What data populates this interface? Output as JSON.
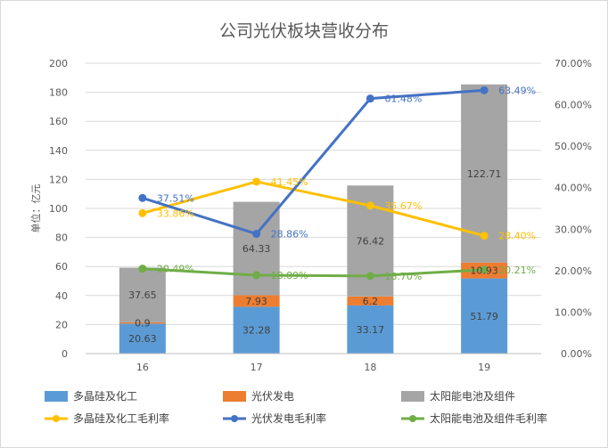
{
  "chart_data": {
    "type": "bar",
    "title": "公司光伏板块营收分布",
    "ylabel": "单位：亿元",
    "xlabel": "",
    "categories": [
      "16",
      "17",
      "18",
      "19"
    ],
    "ylim": [
      0,
      200
    ],
    "yticks": [
      "0",
      "20",
      "40",
      "60",
      "80",
      "100",
      "120",
      "140",
      "160",
      "180",
      "200"
    ],
    "y2lim": [
      0,
      0.7
    ],
    "y2ticks": [
      "0.00%",
      "10.00%",
      "20.00%",
      "30.00%",
      "40.00%",
      "50.00%",
      "60.00%",
      "70.00%"
    ],
    "stacked": true,
    "grid": true,
    "legend_position": "bottom",
    "series": [
      {
        "name": "多晶硅及化工",
        "kind": "bar",
        "axis": "left",
        "color": "#5B9BD5",
        "values": [
          20.63,
          32.28,
          33.17,
          51.79
        ],
        "labels": [
          "20.63",
          "32.28",
          "33.17",
          "51.79"
        ]
      },
      {
        "name": "光伏发电",
        "kind": "bar",
        "axis": "left",
        "color": "#ED7D31",
        "values": [
          0.9,
          7.93,
          6.2,
          10.93
        ],
        "labels": [
          "0.9",
          "7.93",
          "6.2",
          "10.93"
        ]
      },
      {
        "name": "太阳能电池及组件",
        "kind": "bar",
        "axis": "left",
        "color": "#A5A5A5",
        "values": [
          37.65,
          64.33,
          76.42,
          122.71
        ],
        "labels": [
          "37.65",
          "64.33",
          "76.42",
          "122.71"
        ]
      },
      {
        "name": "多晶硅及化工毛利率",
        "kind": "line",
        "axis": "right",
        "color": "#FFC000",
        "values": [
          0.3386,
          0.4145,
          0.3567,
          0.284
        ],
        "labels": [
          "33.86%",
          "41.45%",
          "35.67%",
          "28.40%"
        ]
      },
      {
        "name": "光伏发电毛利率",
        "kind": "line",
        "axis": "right",
        "color": "#4472C4",
        "values": [
          0.3751,
          0.2886,
          0.6148,
          0.6349
        ],
        "labels": [
          "37.51%",
          "28.86%",
          "61.48%",
          "63.49%"
        ]
      },
      {
        "name": "太阳能电池及组件毛利率",
        "kind": "line",
        "axis": "right",
        "color": "#70AD47",
        "values": [
          0.2049,
          0.1889,
          0.187,
          0.2021
        ],
        "labels": [
          "20.49%",
          "18.89%",
          "18.70%",
          "20.21%"
        ]
      }
    ]
  }
}
